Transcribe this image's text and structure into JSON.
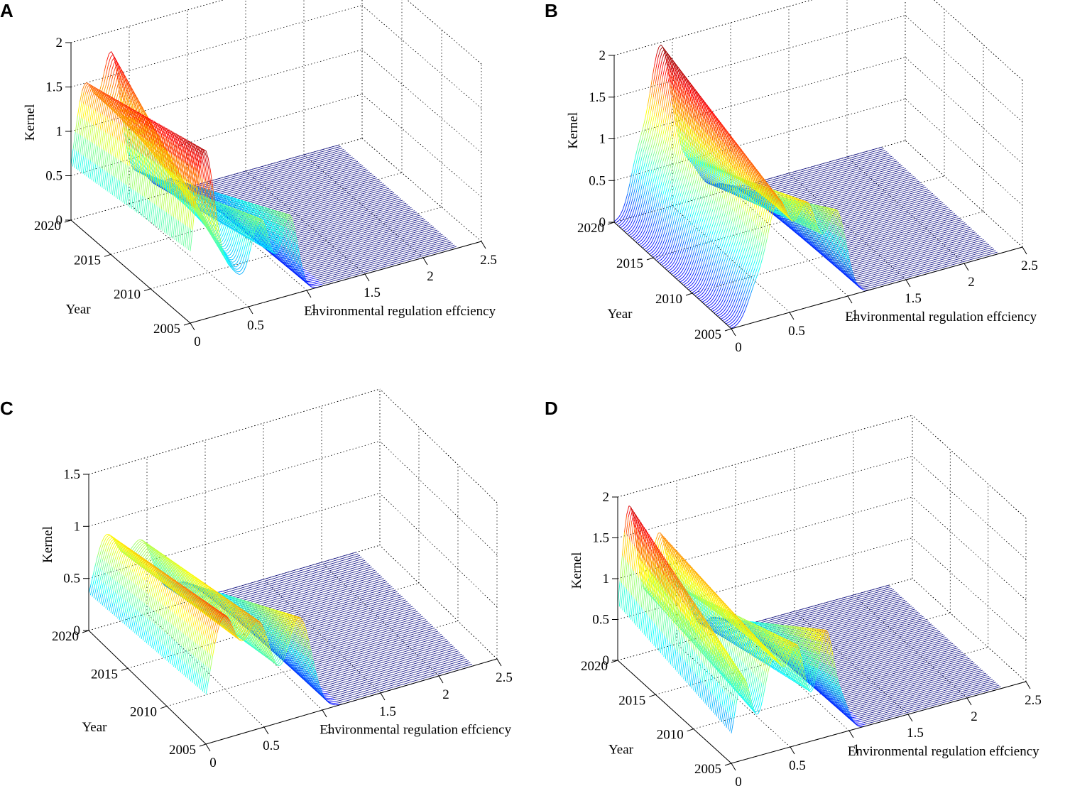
{
  "figure": {
    "panels": [
      "A",
      "B",
      "C",
      "D"
    ]
  },
  "chart_data": [
    {
      "panel": "A",
      "type": "surface3d",
      "xlabel": "Environmental regulation effciency",
      "ylabel": "Year",
      "zlabel": "Kernel",
      "xlim": [
        0,
        2.5
      ],
      "ylim": [
        2005,
        2020
      ],
      "zlim": [
        0,
        2
      ],
      "xticks": [
        0,
        0.5,
        1,
        1.5,
        2,
        2.5
      ],
      "yticks": [
        2005,
        2010,
        2015,
        2020
      ],
      "zticks": [
        0,
        0.5,
        1,
        1.5,
        2
      ],
      "xtick_labels": [
        "0",
        "0.5",
        "1",
        "1.5",
        "2",
        "2.5"
      ],
      "ytick_labels": [
        "2005",
        "2010",
        "2015",
        "2020"
      ],
      "ztick_labels": [
        "0",
        "0.5",
        "1",
        "1.5",
        "2"
      ],
      "grid": true,
      "colormap": "jet",
      "peaks": [
        {
          "x": 0.12,
          "start": 1.9,
          "end": 1.45,
          "width": 0.13
        },
        {
          "x": 0.35,
          "start": 0.4,
          "end": 1.7,
          "width": 0.12
        },
        {
          "x": 0.6,
          "start": 0.95,
          "end": 0.3,
          "width": 0.12
        },
        {
          "x": 0.85,
          "start": 0.9,
          "end": 0.15,
          "width": 0.1
        }
      ]
    },
    {
      "panel": "B",
      "type": "surface3d",
      "xlabel": "Environmental regulation effciency",
      "ylabel": "Year",
      "zlabel": "Kernel",
      "xlim": [
        0,
        2.5
      ],
      "ylim": [
        2005,
        2020
      ],
      "zlim": [
        0,
        2
      ],
      "xticks": [
        0,
        0.5,
        1,
        1.5,
        2,
        2.5
      ],
      "yticks": [
        2005,
        2010,
        2015,
        2020
      ],
      "zticks": [
        0,
        0.5,
        1,
        1.5,
        2
      ],
      "xtick_labels": [
        "0",
        "0.5",
        "1",
        "1.5",
        "2",
        "2.5"
      ],
      "ytick_labels": [
        "2005",
        "2010",
        "2015",
        "2020"
      ],
      "ztick_labels": [
        "0",
        "0.5",
        "1",
        "1.5",
        "2"
      ],
      "grid": true,
      "colormap": "jet",
      "peaks": [
        {
          "x": 0.4,
          "start": 1.35,
          "end": 1.95,
          "width": 0.14
        },
        {
          "x": 0.65,
          "start": 1.2,
          "end": 0.4,
          "width": 0.13
        },
        {
          "x": 0.9,
          "start": 1.05,
          "end": 0.1,
          "width": 0.12
        },
        {
          "x": 0.2,
          "start": 0.3,
          "end": 0.55,
          "width": 0.1
        }
      ]
    },
    {
      "panel": "C",
      "type": "surface3d",
      "xlabel": "Environmental regulation effciency",
      "ylabel": "Year",
      "zlabel": "Kernel",
      "xlim": [
        0,
        2.5
      ],
      "ylim": [
        2005,
        2020
      ],
      "zlim": [
        0,
        1.5
      ],
      "xticks": [
        0,
        0.5,
        1,
        1.5,
        2,
        2.5
      ],
      "yticks": [
        2005,
        2010,
        2015,
        2020
      ],
      "zticks": [
        0,
        0.5,
        1,
        1.5
      ],
      "xtick_labels": [
        "0",
        "0.5",
        "1",
        "1.5",
        "2",
        "2.5"
      ],
      "ytick_labels": [
        "2005",
        "2010",
        "2015",
        "2020"
      ],
      "ztick_labels": [
        "0",
        "0.5",
        "1",
        "1.5"
      ],
      "grid": true,
      "colormap": "jet",
      "peaks": [
        {
          "x": 0.15,
          "start": 1.15,
          "end": 0.85,
          "width": 0.16
        },
        {
          "x": 0.45,
          "start": 1.0,
          "end": 0.7,
          "width": 0.16
        },
        {
          "x": 0.8,
          "start": 0.95,
          "end": 0.2,
          "width": 0.15
        }
      ]
    },
    {
      "panel": "D",
      "type": "surface3d",
      "xlabel": "Environmental regulation effciency",
      "ylabel": "Year",
      "zlabel": "Kernel",
      "xlim": [
        0,
        2.5
      ],
      "ylim": [
        2005,
        2020
      ],
      "zlim": [
        0,
        2
      ],
      "xticks": [
        0,
        0.5,
        1,
        1.5,
        2,
        2.5
      ],
      "yticks": [
        2005,
        2010,
        2015,
        2020
      ],
      "zticks": [
        0,
        0.5,
        1,
        1.5,
        2
      ],
      "xtick_labels": [
        "0",
        "0.5",
        "1",
        "1.5",
        "2",
        "2.5"
      ],
      "ytick_labels": [
        "2005",
        "2010",
        "2015",
        "2020"
      ],
      "ztick_labels": [
        "0",
        "0.5",
        "1",
        "1.5",
        "2"
      ],
      "grid": true,
      "colormap": "jet",
      "peaks": [
        {
          "x": 0.1,
          "start": 1.0,
          "end": 1.85,
          "width": 0.1
        },
        {
          "x": 0.35,
          "start": 1.1,
          "end": 1.4,
          "width": 0.11
        },
        {
          "x": 0.55,
          "start": 1.2,
          "end": 0.6,
          "width": 0.11
        },
        {
          "x": 0.8,
          "start": 1.3,
          "end": 0.2,
          "width": 0.1
        },
        {
          "x": 0.95,
          "start": 0.3,
          "end": 0.1,
          "width": 0.08
        }
      ]
    }
  ]
}
